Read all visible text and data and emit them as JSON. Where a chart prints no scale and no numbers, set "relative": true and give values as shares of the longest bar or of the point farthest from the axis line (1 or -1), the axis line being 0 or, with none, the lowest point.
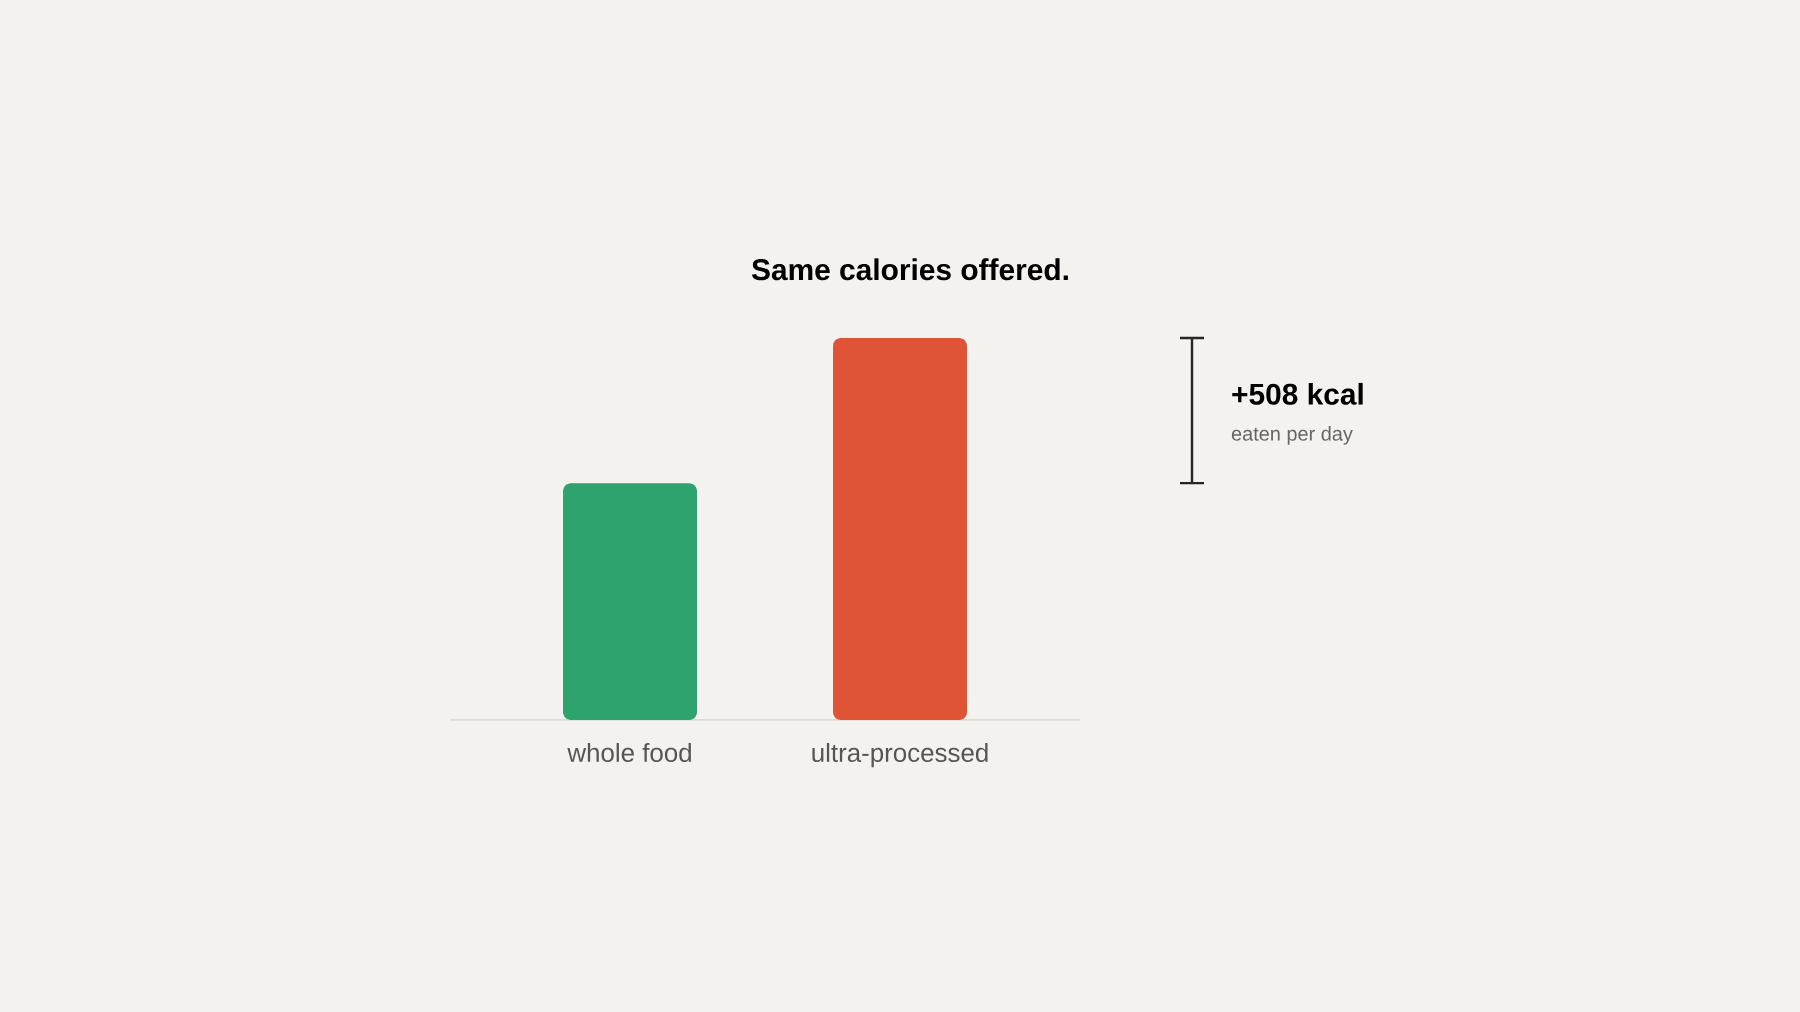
{
  "chart_data": {
    "type": "bar",
    "title": "Same calories offered.",
    "categories": [
      "whole food",
      "ultra-processed"
    ],
    "values": [
      0.62,
      1
    ],
    "colors": [
      "#2ea36e",
      "#e05436"
    ],
    "relative": true,
    "annotations": [
      "**+508 kcal**",
      "eaten per day"
    ]
  }
}
